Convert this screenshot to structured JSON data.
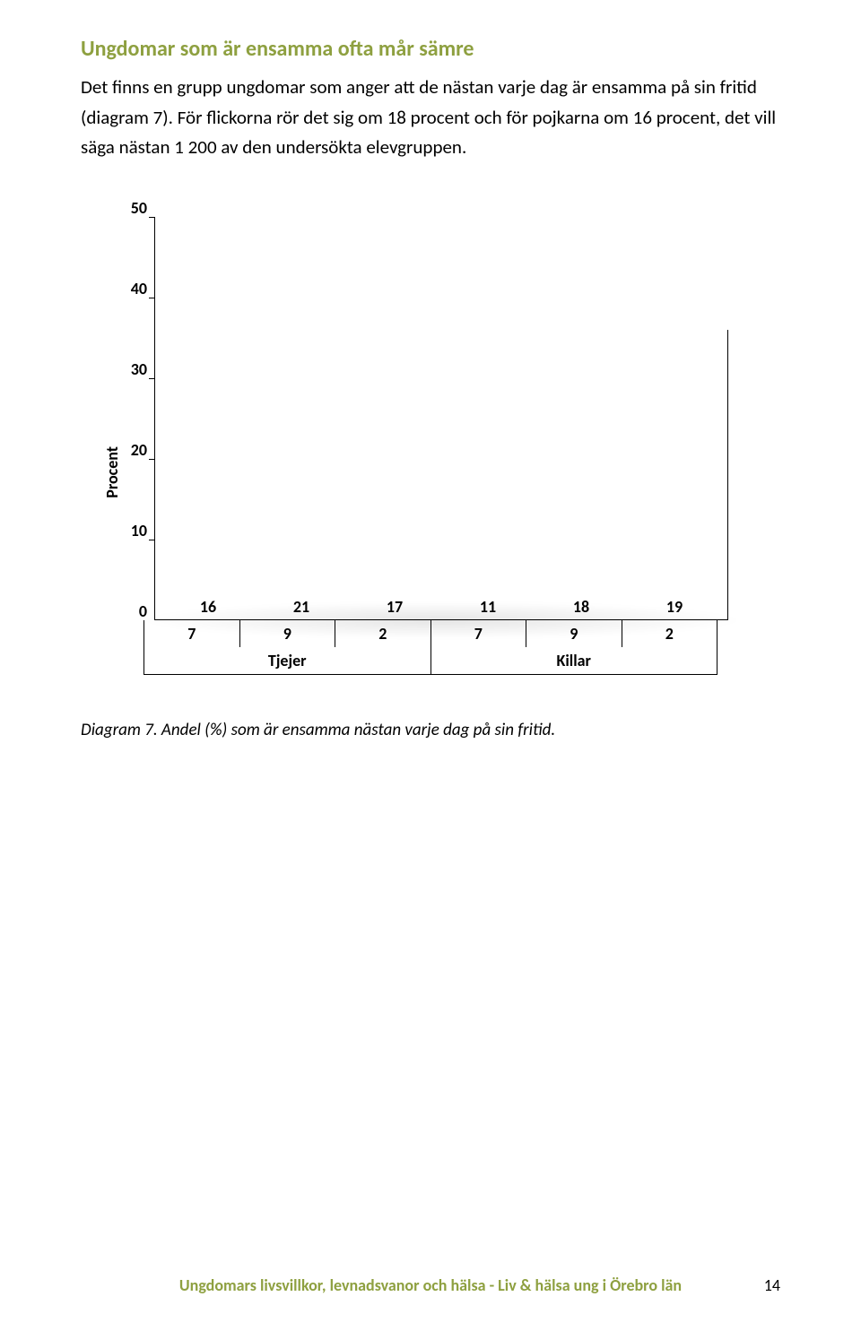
{
  "heading": "Ungdomar som är ensamma ofta mår sämre",
  "paragraph": "Det finns en grupp ungdomar som anger att de nästan varje dag är ensamma på sin fritid (diagram 7). För flickorna rör det sig om 18 procent och för pojkarna om 16 procent, det vill säga nästan 1 200 av den undersökta elevgruppen.",
  "chart": {
    "type": "bar",
    "ylabel": "Procent",
    "ylim": [
      0,
      50
    ],
    "ytick_step": 10,
    "yticks": [
      "50",
      "40",
      "30",
      "20",
      "10",
      "0"
    ],
    "bars": [
      {
        "value": 16,
        "color": "#d9b90f"
      },
      {
        "value": 21,
        "color": "#d9b90f"
      },
      {
        "value": 17,
        "color": "#d9b90f"
      },
      {
        "value": 11,
        "color": "#1d8fc4"
      },
      {
        "value": 18,
        "color": "#1d8fc4"
      },
      {
        "value": 19,
        "color": "#1d8fc4"
      }
    ],
    "x_sub": [
      "7",
      "9",
      "2",
      "7",
      "9",
      "2"
    ],
    "x_groups": [
      "Tjejer",
      "Killar"
    ],
    "background_color": "#ffffff",
    "border_color": "#000000",
    "label_fontsize": 18
  },
  "caption": "Diagram 7. Andel (%) som är ensamma nästan varje dag på sin fritid.",
  "footer": "Ungdomars livsvillkor, levnadsvanor och hälsa - Liv & hälsa ung i Örebro län",
  "page_number": "14"
}
